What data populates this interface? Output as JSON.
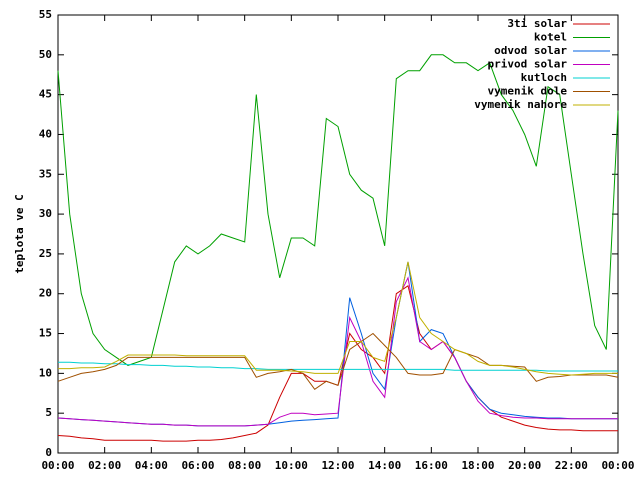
{
  "chart_data": {
    "type": "line",
    "y_label": "teplota ve C",
    "x": [
      0,
      0.5,
      1,
      1.5,
      2,
      2.5,
      3,
      3.5,
      4,
      4.5,
      5,
      5.5,
      6,
      6.5,
      7,
      7.5,
      8,
      8.5,
      9,
      9.5,
      10,
      10.5,
      11,
      11.5,
      12,
      12.5,
      13,
      13.5,
      14,
      14.5,
      15,
      15.5,
      16,
      16.5,
      17,
      17.5,
      18,
      18.5,
      19,
      19.5,
      20,
      20.5,
      21,
      21.5,
      22,
      22.5,
      23,
      23.5,
      24
    ],
    "xlim": [
      0,
      24
    ],
    "xticks": [
      {
        "value": 0,
        "label": "00:00"
      },
      {
        "value": 2,
        "label": "02:00"
      },
      {
        "value": 4,
        "label": "04:00"
      },
      {
        "value": 6,
        "label": "06:00"
      },
      {
        "value": 8,
        "label": "08:00"
      },
      {
        "value": 10,
        "label": "10:00"
      },
      {
        "value": 12,
        "label": "12:00"
      },
      {
        "value": 14,
        "label": "14:00"
      },
      {
        "value": 16,
        "label": "16:00"
      },
      {
        "value": 18,
        "label": "18:00"
      },
      {
        "value": 20,
        "label": "20:00"
      },
      {
        "value": 22,
        "label": "22:00"
      },
      {
        "value": 24,
        "label": "00:00"
      }
    ],
    "ylim": [
      0,
      55
    ],
    "yticks": [
      0,
      5,
      10,
      15,
      20,
      25,
      30,
      35,
      40,
      45,
      50,
      55
    ],
    "legend": "top-right",
    "series": [
      {
        "name": "3ti solar",
        "color": "#cc0000",
        "values": [
          2.2,
          2.1,
          1.9,
          1.8,
          1.6,
          1.6,
          1.6,
          1.6,
          1.6,
          1.5,
          1.5,
          1.5,
          1.6,
          1.6,
          1.7,
          1.9,
          2.2,
          2.5,
          3.5,
          7,
          10,
          10,
          9,
          9,
          8.5,
          15,
          13,
          12,
          10,
          20,
          21,
          15,
          13,
          14,
          12,
          9,
          7,
          5.5,
          4.5,
          4,
          3.5,
          3.2,
          3,
          2.9,
          2.9,
          2.8,
          2.8,
          2.8,
          2.8
        ]
      },
      {
        "name": "kotel",
        "color": "#00a000",
        "values": [
          48,
          30,
          20,
          15,
          13,
          12,
          11,
          11.5,
          12,
          18,
          24,
          26,
          25,
          26,
          27.5,
          27,
          26.5,
          45,
          30,
          22,
          27,
          27,
          26,
          42,
          41,
          35,
          33,
          32,
          26,
          47,
          48,
          48,
          50,
          50,
          49,
          49,
          48,
          49,
          45,
          43,
          40,
          36,
          46,
          45,
          35,
          25,
          16,
          13,
          43
        ]
      },
      {
        "name": "odvod solar",
        "color": "#0060e0",
        "values": [
          4.4,
          4.3,
          4.2,
          4.1,
          4,
          3.9,
          3.8,
          3.7,
          3.6,
          3.6,
          3.5,
          3.5,
          3.4,
          3.4,
          3.4,
          3.4,
          3.4,
          3.5,
          3.6,
          3.8,
          4,
          4.1,
          4.2,
          4.3,
          4.4,
          19.5,
          15,
          10,
          8,
          17,
          24,
          14,
          15.5,
          15,
          12,
          9,
          7,
          5.5,
          5,
          4.8,
          4.6,
          4.5,
          4.4,
          4.4,
          4.3,
          4.3,
          4.3,
          4.3,
          4.3
        ]
      },
      {
        "name": "privod solar",
        "color": "#c000c0",
        "values": [
          4.4,
          4.3,
          4.2,
          4.1,
          4,
          3.9,
          3.8,
          3.7,
          3.6,
          3.6,
          3.5,
          3.5,
          3.4,
          3.4,
          3.4,
          3.4,
          3.4,
          3.5,
          3.6,
          4.5,
          5,
          5,
          4.8,
          4.9,
          5,
          17,
          14,
          9,
          7,
          19,
          22,
          14,
          13,
          14,
          12,
          9,
          6.5,
          5,
          4.7,
          4.5,
          4.4,
          4.4,
          4.3,
          4.3,
          4.3,
          4.3,
          4.3,
          4.3,
          4.3
        ]
      },
      {
        "name": "kutloch",
        "color": "#00d0d0",
        "values": [
          11.4,
          11.4,
          11.3,
          11.3,
          11.2,
          11.2,
          11.1,
          11.1,
          11,
          11,
          10.9,
          10.9,
          10.8,
          10.8,
          10.7,
          10.7,
          10.6,
          10.6,
          10.5,
          10.5,
          10.5,
          10.5,
          10.5,
          10.5,
          10.5,
          10.5,
          10.5,
          10.5,
          10.5,
          10.5,
          10.5,
          10.5,
          10.5,
          10.5,
          10.4,
          10.4,
          10.4,
          10.4,
          10.4,
          10.4,
          10.4,
          10.4,
          10.3,
          10.3,
          10.3,
          10.3,
          10.3,
          10.3,
          10.3
        ]
      },
      {
        "name": "vymenik dole",
        "color": "#a05000",
        "values": [
          9,
          9.5,
          10,
          10.2,
          10.5,
          11,
          12,
          12,
          12,
          12,
          12,
          12,
          12,
          12,
          12,
          12,
          12,
          9.5,
          10,
          10.2,
          10.5,
          10,
          8,
          9,
          8.5,
          13,
          14,
          15,
          13.5,
          12,
          10,
          9.8,
          9.8,
          10,
          13,
          12.5,
          12,
          11,
          11,
          10.9,
          10.8,
          9,
          9.5,
          9.6,
          9.8,
          9.8,
          9.8,
          9.8,
          9.5
        ]
      },
      {
        "name": "vymenik nahore",
        "color": "#c0b000",
        "values": [
          10.6,
          10.6,
          10.7,
          10.7,
          10.8,
          11.5,
          12.3,
          12.3,
          12.3,
          12.3,
          12.3,
          12.2,
          12.2,
          12.2,
          12.2,
          12.2,
          12.2,
          10.4,
          10.4,
          10.4,
          10.3,
          10.2,
          10,
          10,
          10,
          14,
          14,
          12,
          11.5,
          17,
          24,
          17,
          15,
          14,
          13,
          12.5,
          11.5,
          11,
          11,
          10.8,
          10.5,
          10.2,
          10,
          9.9,
          9.8,
          9.9,
          10,
          10,
          10
        ]
      }
    ]
  }
}
